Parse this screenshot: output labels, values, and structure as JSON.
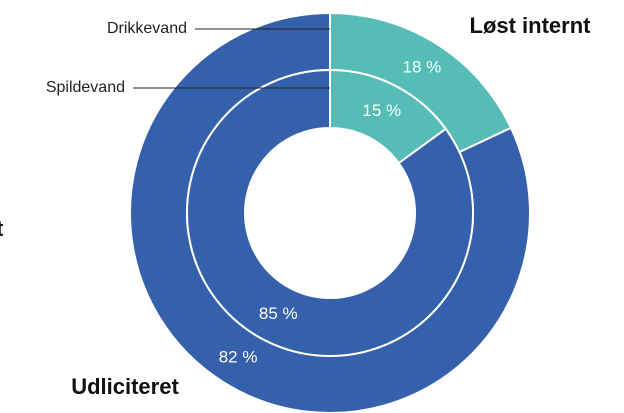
{
  "chart_data": {
    "type": "pie",
    "categories": [
      "Løst internt",
      "Udliciteret"
    ],
    "colors": [
      "#55bdb6",
      "#3560ab"
    ],
    "series": [
      {
        "name": "Drikkevand",
        "values": [
          18,
          82
        ],
        "value_labels": [
          "18 %",
          "82 %"
        ]
      },
      {
        "name": "Spildevand",
        "values": [
          15,
          85
        ],
        "value_labels": [
          "15 %",
          "85 %"
        ]
      }
    ],
    "annotations": [
      "t"
    ]
  }
}
